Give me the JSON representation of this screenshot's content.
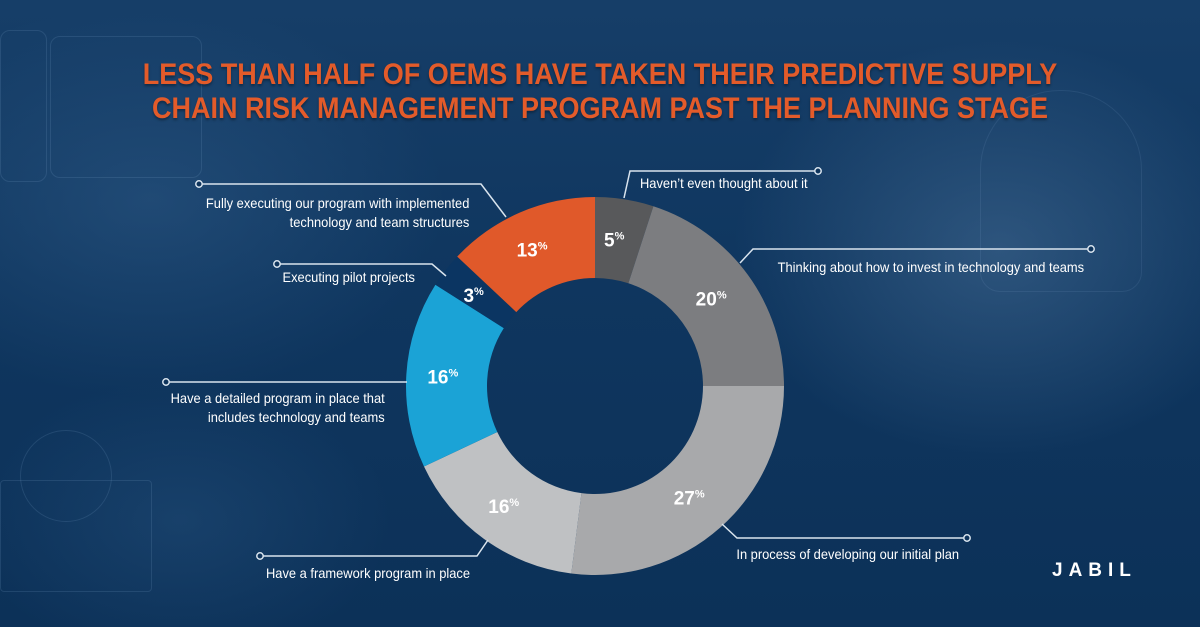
{
  "title": {
    "line1": "LESS THAN HALF OF OEMS HAVE TAKEN THEIR PREDICTIVE SUPPLY",
    "line2": "CHAIN RISK MANAGEMENT PROGRAM PAST THE PLANNING STAGE"
  },
  "brand": {
    "logo_text": "JABIL"
  },
  "colors": {
    "title": "#e35b2a",
    "background": "#0e345c",
    "callout_line": "#d9e4ee"
  },
  "chart_data": {
    "type": "pie",
    "variant": "donut",
    "title": "Less than half of OEMs have taken their predictive supply chain risk management program past the planning stage",
    "start": "12 o'clock",
    "direction": "clockwise",
    "unit": "%",
    "slices": [
      {
        "label": "Haven’t even thought about it",
        "value": 5,
        "display": "5",
        "color": "#58595b"
      },
      {
        "label": "Thinking about how to invest in technology and teams",
        "value": 20,
        "display": "20",
        "color": "#7c7d80"
      },
      {
        "label": "In process of developing our initial plan",
        "value": 27,
        "display": "27",
        "color": "#a8a9ab"
      },
      {
        "label": "Have a framework program in place",
        "value": 16,
        "display": "16",
        "color": "#bfc1c3"
      },
      {
        "label": "Have a detailed program in place that includes technology and teams",
        "value": 16,
        "display": "16",
        "color": "#1ba3d6"
      },
      {
        "label": "Executing pilot projects",
        "value": 3,
        "display": "3",
        "color": "#0b3562"
      },
      {
        "label": "Fully executing our program with implemented technology and team structures",
        "value": 13,
        "display": "13",
        "color": "#e0592a"
      }
    ]
  },
  "callouts": {
    "not_thought": {
      "text": "Haven’t even thought about it"
    },
    "thinking": {
      "text": "Thinking about how to invest in technology and teams"
    },
    "developing": {
      "text": "In process of developing our initial plan"
    },
    "framework": {
      "text": "Have a framework program in place"
    },
    "detailed": {
      "line1": "Have a detailed program in place that",
      "line2": "includes technology and teams"
    },
    "pilot": {
      "text": "Executing pilot projects"
    },
    "fully": {
      "line1": "Fully executing our program with implemented",
      "line2": "technology and team structures"
    }
  }
}
